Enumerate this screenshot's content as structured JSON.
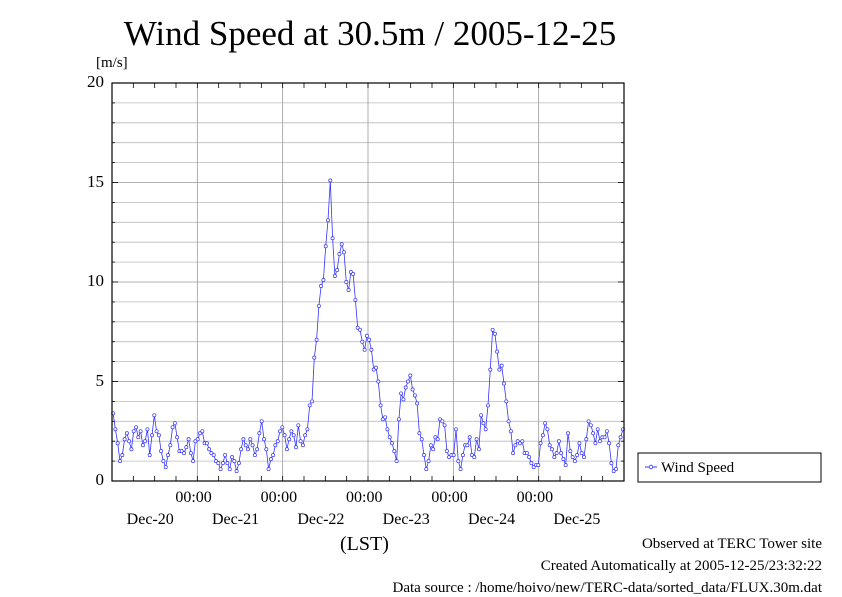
{
  "chart_data": {
    "type": "line",
    "title": "Wind Speed at 30.5m / 2005-12-25",
    "ylabel": "[m/s]",
    "xlabel": "(LST)",
    "ylim": [
      0,
      20
    ],
    "xlim": [
      0,
      144
    ],
    "yticks": [
      "0",
      "5",
      "10",
      "15",
      "20"
    ],
    "xtick_time_labels": [
      "00:00",
      "00:00",
      "00:00",
      "00:00",
      "00:00"
    ],
    "xtick_date_labels": [
      "Dec-20",
      "Dec-21",
      "Dec-22",
      "Dec-23",
      "Dec-24",
      "Dec-25"
    ],
    "grid": true,
    "legend_position": "right",
    "series": [
      {
        "name": "Wind Speed",
        "color": "#3333ff",
        "values": [
          3.4,
          2.6,
          1.9,
          1.0,
          1.3,
          2.1,
          2.4,
          2.0,
          1.6,
          2.5,
          2.7,
          2.2,
          2.5,
          1.8,
          2.0,
          2.6,
          1.3,
          2.3,
          3.3,
          2.5,
          2.3,
          1.5,
          1.0,
          0.7,
          1.3,
          1.8,
          2.7,
          2.9,
          2.2,
          1.5,
          1.5,
          1.4,
          1.7,
          2.1,
          1.4,
          1.0,
          2.0,
          2.1,
          2.4,
          2.5,
          1.9,
          1.9,
          1.6,
          1.4,
          1.3,
          1.0,
          0.9,
          0.6,
          0.9,
          1.3,
          0.9,
          0.6,
          1.2,
          1.0,
          0.5,
          0.9,
          1.6,
          2.1,
          1.8,
          1.6,
          2.1,
          1.8,
          1.3,
          1.6,
          2.4,
          3.0,
          2.1,
          1.6,
          0.6,
          1.1,
          1.3,
          1.8,
          2.0,
          2.5,
          2.7,
          2.3,
          1.6,
          2.1,
          2.5,
          2.3,
          1.7,
          2.8,
          2.0,
          1.8,
          2.3,
          2.6,
          3.8,
          4.0,
          6.2,
          7.1,
          8.8,
          9.8,
          10.1,
          11.8,
          13.1,
          15.1,
          12.2,
          10.3,
          10.6,
          11.4,
          11.9,
          11.5,
          10.0,
          9.6,
          10.5,
          10.4,
          9.1,
          7.7,
          7.6,
          7.0,
          6.6,
          7.3,
          7.1,
          6.6,
          5.6,
          5.7,
          5.0,
          3.8,
          3.1,
          3.2,
          2.6,
          2.2,
          1.9,
          1.5,
          1.0,
          3.1,
          4.4,
          4.1,
          4.7,
          5.0,
          5.3,
          4.6,
          4.3,
          3.9,
          2.4,
          2.1,
          1.3,
          0.6,
          1.0,
          1.8,
          1.6,
          2.2,
          2.1,
          3.1,
          3.0,
          2.8,
          1.5,
          1.2,
          1.3,
          1.3,
          2.6,
          1.0,
          0.6,
          1.3,
          1.8,
          1.8,
          2.2,
          1.3,
          1.2,
          2.1,
          1.6,
          3.3,
          2.9,
          2.6,
          3.8,
          5.6,
          7.6,
          7.4,
          6.5,
          5.6,
          5.8,
          4.9,
          4.0,
          3.0,
          2.5,
          1.4,
          1.8,
          2.0,
          1.9,
          2.0,
          1.4,
          1.4,
          1.2,
          0.9,
          0.7,
          0.8,
          0.8,
          1.9,
          2.3,
          2.9,
          2.6,
          1.8,
          1.6,
          1.2,
          1.4,
          2.0,
          1.4,
          1.1,
          0.8,
          2.4,
          1.5,
          1.2,
          1.0,
          1.3,
          1.9,
          1.4,
          1.2,
          2.1,
          3.0,
          2.8,
          2.4,
          1.9,
          2.6,
          2.0,
          2.2,
          2.2,
          2.5,
          1.9,
          0.9,
          0.5,
          0.6,
          1.8,
          2.2,
          2.6
        ]
      }
    ]
  },
  "footer": {
    "observed": "Observed at TERC Tower site",
    "created": "Created Automatically at 2005-12-25/23:32:22",
    "source": "Data source : /home/hoivo/new/TERC-data/sorted_data/FLUX.30m.dat"
  }
}
